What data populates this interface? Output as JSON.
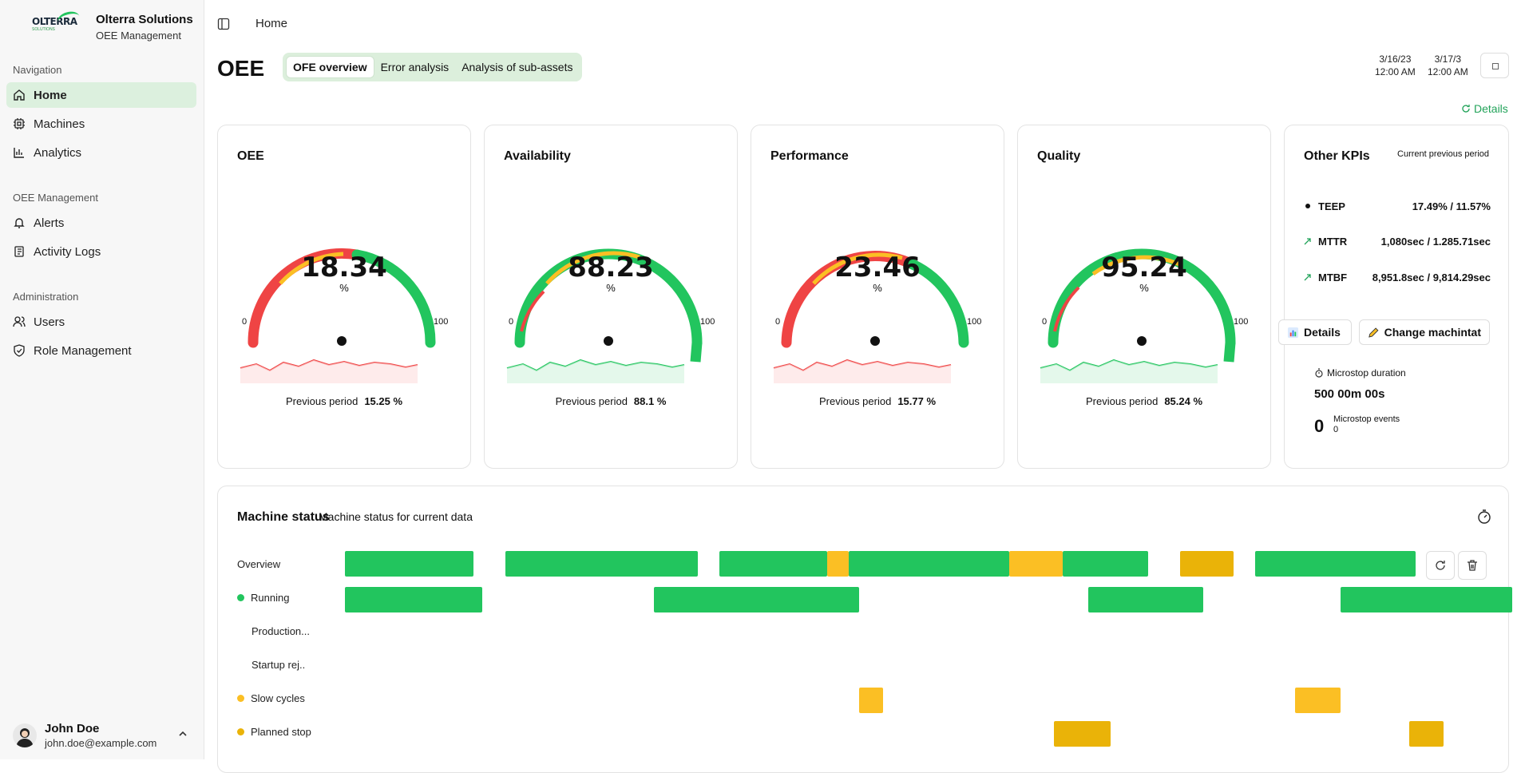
{
  "brand": {
    "logo_text": "OLTERRA",
    "logo_sub": "SOLUTIONS",
    "name": "Olterra Solutions",
    "subtitle": "OEE Management"
  },
  "nav": {
    "section_navigation": "Navigation",
    "home": "Home",
    "machines": "Machines",
    "analytics": "Analytics",
    "section_oee": "OEE Management",
    "alerts": "Alerts",
    "activity_logs": "Activity Logs",
    "section_admin": "Administration",
    "users": "Users",
    "role_management": "Role Management"
  },
  "user": {
    "name": "John Doe",
    "email": "john.doe@example.com"
  },
  "header": {
    "breadcrumb": "Home",
    "title": "OEE"
  },
  "tabs": [
    "OFE overview",
    "Error analysis",
    "Analysis of sub-assets"
  ],
  "dates": {
    "start_date": "3/16/23",
    "start_time": "12:00 AM",
    "end_date": "3/17/3",
    "end_time": "12:00 AM"
  },
  "details_link": "Details",
  "gauges": [
    {
      "title": "OEE",
      "value": "18.34",
      "unit": "%",
      "min": "0",
      "max": "100",
      "prev_label": "Previous period",
      "prev_value": "15.25 %",
      "trend": "red"
    },
    {
      "title": "Availability",
      "value": "88.23",
      "unit": "%",
      "min": "0",
      "max": "100",
      "prev_label": "Previous period",
      "prev_value": "88.1 %",
      "trend": "green"
    },
    {
      "title": "Performance",
      "value": "23.46",
      "unit": "%",
      "min": "0",
      "max": "100",
      "prev_label": "Previous period",
      "prev_value": "15.77 %",
      "trend": "red"
    },
    {
      "title": "Quality",
      "value": "95.24",
      "unit": "%",
      "min": "0",
      "max": "100",
      "prev_label": "Previous period",
      "prev_value": "85.24 %",
      "trend": "green"
    }
  ],
  "kpis": {
    "title": "Other KPIs",
    "subtitle": "Current previous period",
    "rows": [
      {
        "name": "TEEP",
        "value": "17.49% / 11.57%"
      },
      {
        "name": "MTTR",
        "value": "1,080sec / 1.285.71sec"
      },
      {
        "name": "MTBF",
        "value": "8,951.8sec / 9,814.29sec"
      }
    ],
    "details_button": "Details",
    "change_button": "Change machintat",
    "microstop_duration_label": "Microstop duration",
    "microstop_duration_value": "500 00m 00s",
    "microstop_events_value": "0",
    "microstop_events_label": "Microstop events",
    "microstop_events_sub": "0"
  },
  "machine_status": {
    "title": "Machine status",
    "subtitle": "Machine status for current data",
    "rows": [
      "Overview",
      "Running",
      "Production...",
      "Startup rej..",
      "Slow cycles",
      "Planned stop"
    ]
  },
  "colors": {
    "green": "#22c55e",
    "yellow": "#fbbf24",
    "dark_yellow": "#eab308",
    "red": "#ef4444",
    "accent_bg": "#dcefdc"
  }
}
